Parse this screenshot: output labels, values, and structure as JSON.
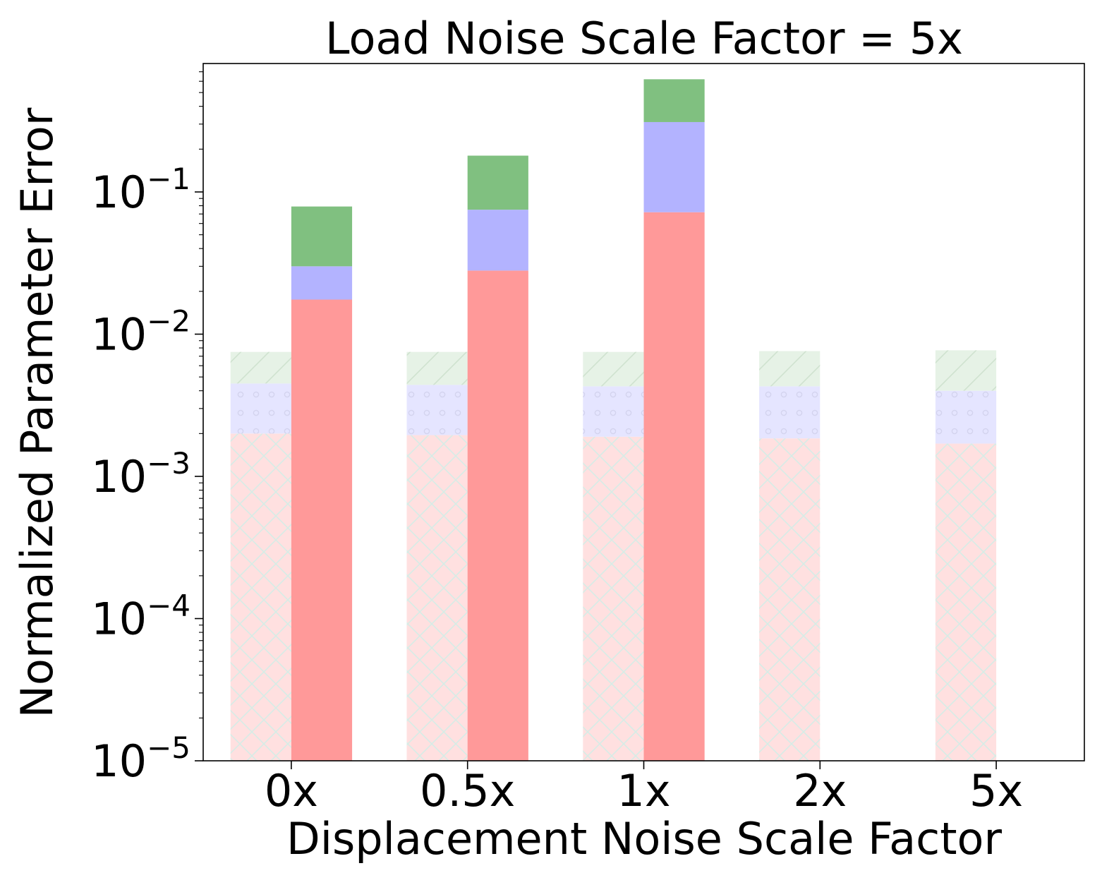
{
  "chart_data": {
    "type": "bar",
    "title": "Load Noise Scale Factor = 5x",
    "xlabel": "Displacement Noise Scale Factor",
    "ylabel": "Normalized Parameter Error",
    "yscale": "log",
    "ylim": [
      1e-05,
      0.8
    ],
    "y_ticks": [
      {
        "value": 1e-05,
        "base": "10",
        "exp": "−5"
      },
      {
        "value": 0.0001,
        "base": "10",
        "exp": "−4"
      },
      {
        "value": 0.001,
        "base": "10",
        "exp": "−3"
      },
      {
        "value": 0.01,
        "base": "10",
        "exp": "−2"
      },
      {
        "value": 0.1,
        "base": "10",
        "exp": "−1"
      }
    ],
    "categories": [
      "0x",
      "0.5x",
      "1x",
      "2x",
      "5x"
    ],
    "grid": false,
    "legend": "none",
    "stacked": true,
    "groups": [
      {
        "style": "hatched-light",
        "segments": [
          {
            "color": "#ffe0e0",
            "hatch": "cross",
            "values": [
              0.002,
              0.00195,
              0.0019,
              0.00185,
              0.0017
            ]
          },
          {
            "color": "#e5e5ff",
            "hatch": "dots",
            "values": [
              0.0045,
              0.0044,
              0.0043,
              0.0043,
              0.004
            ]
          },
          {
            "color": "#e6f2e6",
            "hatch": "diagonal",
            "values": [
              0.0075,
              0.0075,
              0.0075,
              0.0076,
              0.0077
            ]
          }
        ]
      },
      {
        "style": "solid",
        "segments": [
          {
            "color": "#ff9999",
            "values": [
              0.0175,
              0.028,
              0.072,
              null,
              null
            ]
          },
          {
            "color": "#b3b3ff",
            "values": [
              0.03,
              0.075,
              0.31,
              null,
              null
            ]
          },
          {
            "color": "#80c080",
            "values": [
              0.079,
              0.18,
              0.62,
              null,
              null
            ]
          }
        ]
      }
    ]
  }
}
